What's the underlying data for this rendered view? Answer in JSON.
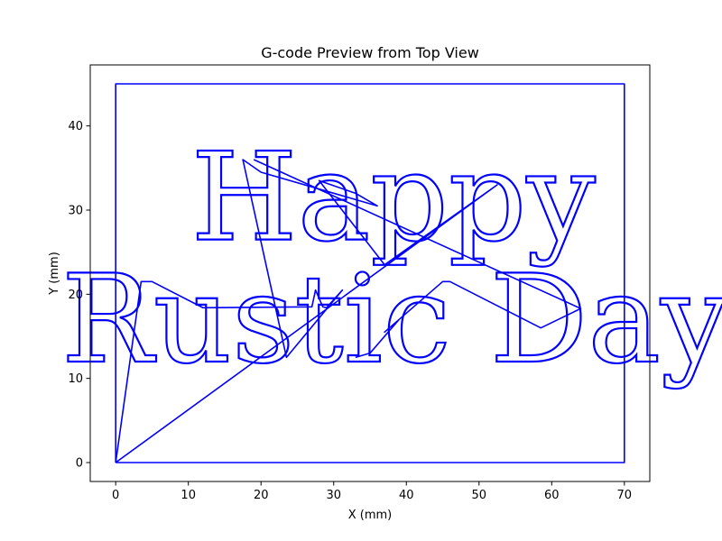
{
  "chart_data": {
    "type": "line",
    "title": "G-code Preview from Top View",
    "xlabel": "X (mm)",
    "ylabel": "Y (mm)",
    "xlim": [
      -3.5,
      73.5
    ],
    "ylim": [
      -2.25,
      47.25
    ],
    "x_ticks": [
      0,
      10,
      20,
      30,
      40,
      50,
      60,
      70
    ],
    "y_ticks": [
      0,
      10,
      20,
      30,
      40
    ],
    "grid": false,
    "line_color": "#0000ff",
    "series": [
      {
        "values": [
          [
            0,
            0
          ],
          [
            0,
            45
          ],
          [
            70,
            45
          ],
          [
            70,
            0
          ],
          [
            0,
            0
          ]
        ]
      },
      {
        "values": [
          [
            0,
            0
          ],
          [
            3.5,
            21.5
          ],
          [
            5,
            21.5
          ],
          [
            12,
            18.4
          ],
          [
            27,
            18.5
          ],
          [
            27.5,
            20.5
          ],
          [
            28.5,
            18.5
          ],
          [
            29,
            18.4
          ],
          [
            31.2,
            20.5
          ],
          [
            23.5,
            12.5
          ],
          [
            17.5,
            36
          ],
          [
            20,
            34.5
          ],
          [
            36,
            30.5
          ],
          [
            33,
            32
          ],
          [
            28,
            33.5
          ],
          [
            37,
            23.5
          ],
          [
            52.5,
            33
          ],
          [
            0,
            0
          ]
        ]
      },
      {
        "values": [
          [
            19,
            36
          ],
          [
            64,
            18.3
          ],
          [
            58.5,
            16
          ],
          [
            46,
            21.5
          ],
          [
            45,
            21.5
          ],
          [
            37,
            15.5
          ],
          [
            39,
            17
          ],
          [
            35,
            13
          ],
          [
            33,
            12.5
          ]
        ]
      }
    ],
    "text_marks": [
      {
        "text": "Happy",
        "x": 38.2,
        "y": 26.5,
        "size_y": 14.5
      },
      {
        "text": "Rustic Day",
        "x": 38.5,
        "y": 12,
        "size_y": 14.5
      }
    ]
  }
}
